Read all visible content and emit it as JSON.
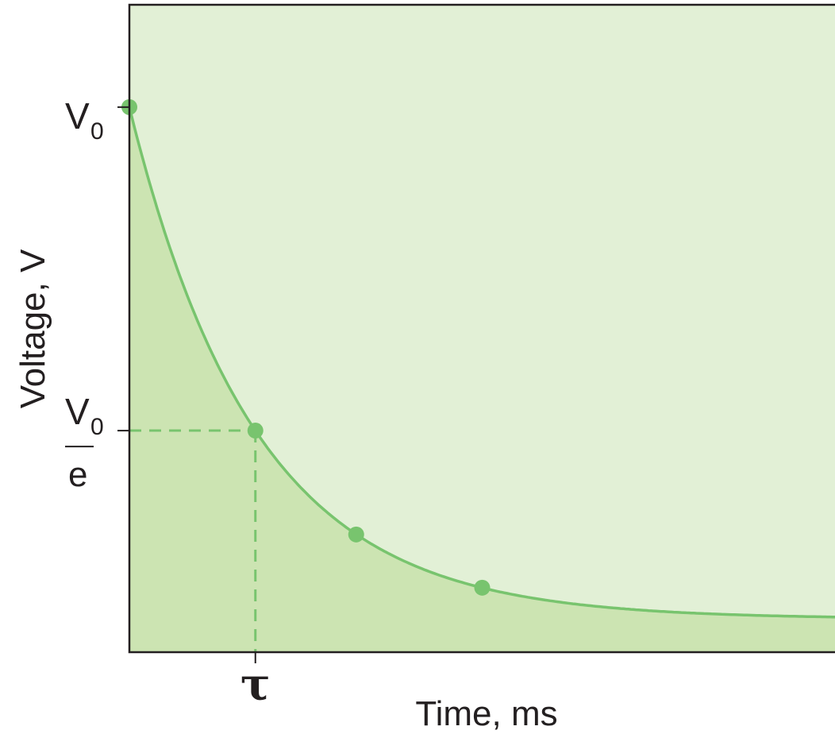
{
  "chart_data": {
    "type": "line",
    "title": "",
    "xlabel": "Time, ms",
    "ylabel": "Voltage, V",
    "x_tick_labels": [
      {
        "text": "τ",
        "x": 1
      }
    ],
    "y_tick_labels": [
      {
        "main": "V",
        "sub": "0",
        "denominator": "",
        "y": 1.0
      },
      {
        "main": "V",
        "sub": "0",
        "denominator": "e",
        "y": 0.3679
      }
    ],
    "xlim": [
      0,
      5.6
    ],
    "ylim": [
      -0.065,
      1.2
    ],
    "series": [
      {
        "function": "exp(-x)",
        "x_points": [
          0,
          1,
          1.8,
          2.8
        ],
        "y_points": [
          1.0,
          0.368,
          0.165,
          0.061
        ]
      }
    ],
    "guide_lines": {
      "x": 1,
      "y": 0.368,
      "style": "dashed"
    },
    "colors": {
      "plot_background": "#e2f0d6",
      "area_fill": "#cce4b2",
      "curve": "#78c46e",
      "points": "#78c46e",
      "axis": "#231f20"
    },
    "grid": false,
    "legend": "none"
  }
}
